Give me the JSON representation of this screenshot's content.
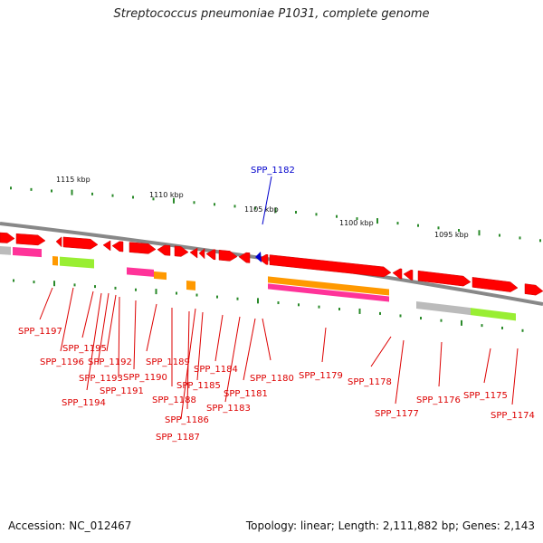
{
  "title": "Streptococcus pneumoniae P1031, complete genome",
  "footer": {
    "accession": "Accession: NC_012467",
    "summary": "Topology: linear; Length: 2,111,882 bp; Genes: 2,143"
  },
  "colors": {
    "gene_red": "#ff0000",
    "tick_green": "#2a8a2a",
    "backbone": "#888888",
    "label_red": "#dd0000",
    "highlight_blue": "#0000cc",
    "orange": "#ff9900",
    "magenta": "#ff3399",
    "lime": "#99ee33",
    "grey": "#bbbbbb"
  },
  "scale_labels": [
    "1115 kbp",
    "1110 kbp",
    "1105 kbp",
    "1100 kbp",
    "1095 kbp"
  ],
  "highlight_gene": "SPP_1182",
  "gene_labels": [
    "SPP_1197",
    "SPP_1196",
    "SPP_1195",
    "SPP_1194",
    "SPP_1193",
    "SPP_1192",
    "SPP_1191",
    "SPP_1190",
    "SPP_1189",
    "SPP_1188",
    "SPP_1187",
    "SPP_1186",
    "SPP_1185",
    "SPP_1184",
    "SPP_1183",
    "SPP_1181",
    "SPP_1180",
    "SPP_1179",
    "SPP_1178",
    "SPP_1177",
    "SPP_1176",
    "SPP_1175",
    "SPP_1174"
  ]
}
